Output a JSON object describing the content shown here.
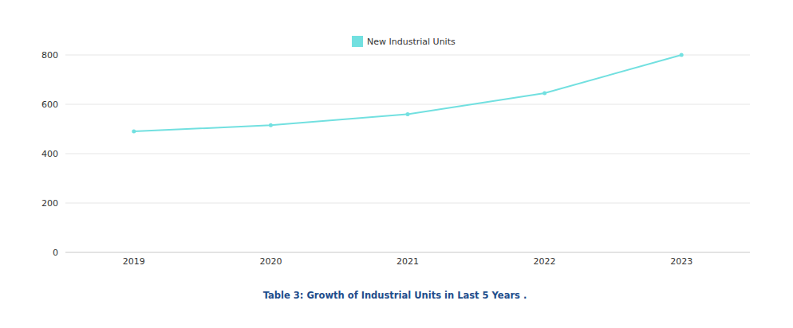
{
  "chart_data": {
    "type": "line",
    "title": "Table 3: Growth of Industrial Units in Last 5 Years .",
    "categories": [
      "2019",
      "2020",
      "2021",
      "2022",
      "2023"
    ],
    "series": [
      {
        "name": "New Industrial Units",
        "color": "#72e0e0",
        "values": [
          490,
          515,
          560,
          645,
          800
        ],
        "marker": "circle"
      }
    ],
    "ylim": [
      0,
      800
    ],
    "yticks": [
      0,
      200,
      400,
      600,
      800
    ],
    "grid": true,
    "legend": "top"
  }
}
